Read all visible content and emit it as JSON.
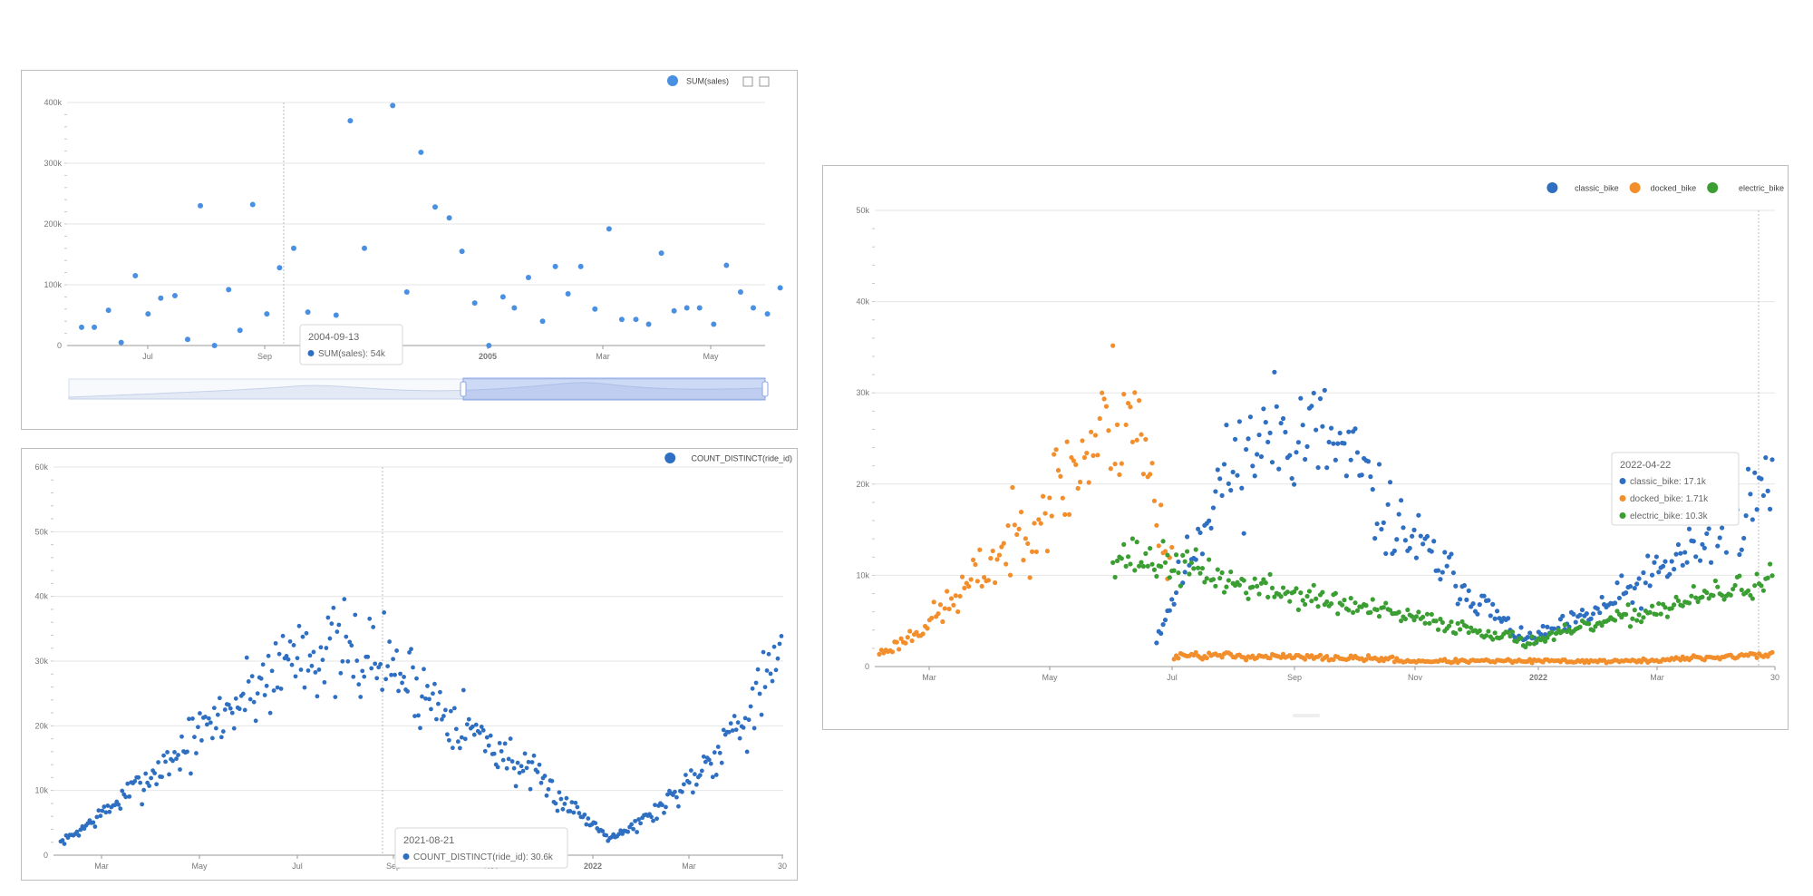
{
  "charts": {
    "c1": {
      "legend": [
        {
          "name": "SUM(sales)",
          "color": "#4a90e2"
        }
      ],
      "toolbox_icons": [
        "zoom-icon",
        "restore-icon"
      ],
      "tooltip": {
        "title": "2004-09-13",
        "rows": [
          {
            "label": "SUM(sales): 54k",
            "color": "#2f6fc2"
          }
        ]
      }
    },
    "c2": {
      "legend": [
        {
          "name": "COUNT_DISTINCT(ride_id)",
          "color": "#2f6fc2"
        }
      ],
      "tooltip": {
        "title": "2021-08-21",
        "rows": [
          {
            "label": "COUNT_DISTINCT(ride_id): 30.6k",
            "color": "#2f6fc2"
          }
        ]
      }
    },
    "c3": {
      "legend": [
        {
          "name": "classic_bike",
          "color": "#2f6fc2"
        },
        {
          "name": "docked_bike",
          "color": "#f28e2b"
        },
        {
          "name": "electric_bike",
          "color": "#3a9e32"
        }
      ],
      "tooltip": {
        "title": "2022-04-22",
        "rows": [
          {
            "label": "classic_bike: 17.1k",
            "color": "#2f6fc2"
          },
          {
            "label": "docked_bike: 1.71k",
            "color": "#f28e2b"
          },
          {
            "label": "electric_bike: 10.3k",
            "color": "#3a9e32"
          }
        ]
      }
    }
  },
  "chart_data": [
    {
      "type": "scatter",
      "series": [
        {
          "name": "SUM(sales)",
          "color": "#4a90e2",
          "points": [
            [
              0.0,
              30
            ],
            [
              0.9,
              30
            ],
            [
              1.9,
              58
            ],
            [
              2.8,
              5
            ],
            [
              3.8,
              115
            ],
            [
              4.7,
              52
            ],
            [
              5.6,
              78
            ],
            [
              6.6,
              82
            ],
            [
              7.5,
              10
            ],
            [
              8.4,
              230
            ],
            [
              9.4,
              0
            ],
            [
              10.4,
              92
            ],
            [
              11.2,
              25
            ],
            [
              12.1,
              232
            ],
            [
              13.1,
              52
            ],
            [
              14.0,
              128
            ],
            [
              15.0,
              160
            ],
            [
              16.0,
              55
            ],
            [
              17.0,
              0
            ],
            [
              18.0,
              50
            ],
            [
              19.0,
              370
            ],
            [
              20.0,
              160
            ],
            [
              21.0,
              30
            ],
            [
              22.0,
              395
            ],
            [
              23.0,
              88
            ],
            [
              24.0,
              318
            ],
            [
              25.0,
              228
            ],
            [
              26.0,
              210
            ],
            [
              26.9,
              155
            ],
            [
              27.8,
              70
            ],
            [
              28.8,
              0
            ],
            [
              29.8,
              80
            ],
            [
              30.6,
              62
            ],
            [
              31.6,
              112
            ],
            [
              32.6,
              40
            ],
            [
              33.5,
              130
            ],
            [
              34.4,
              85
            ],
            [
              35.3,
              130
            ],
            [
              36.3,
              60
            ],
            [
              37.3,
              192
            ],
            [
              38.2,
              43
            ],
            [
              39.2,
              43
            ],
            [
              40.1,
              35
            ],
            [
              41.0,
              152
            ],
            [
              41.9,
              57
            ],
            [
              42.8,
              62
            ],
            [
              43.7,
              62
            ],
            [
              44.7,
              35
            ],
            [
              45.6,
              132
            ],
            [
              46.6,
              88
            ],
            [
              47.5,
              62
            ],
            [
              48.5,
              52
            ],
            [
              49.4,
              95
            ]
          ]
        }
      ],
      "x_ticks": [
        "Jul",
        "Sep",
        "2005",
        "Mar",
        "May"
      ],
      "y_ticks": [
        "0",
        "100k",
        "200k",
        "300k",
        "400k"
      ],
      "ylim": [
        0,
        400000
      ],
      "grid": true,
      "legend_position": "top-right"
    },
    {
      "type": "scatter",
      "series": [
        {
          "name": "COUNT_DISTINCT(ride_id)",
          "color": "#2f6fc2",
          "points": []
        }
      ],
      "x_ticks": [
        "Mar",
        "May",
        "Jul",
        "Sep",
        "Nov",
        "2022",
        "Mar",
        "30"
      ],
      "y_ticks": [
        "0",
        "10k",
        "20k",
        "30k",
        "40k",
        "50k",
        "60k"
      ],
      "ylim": [
        0,
        60000
      ],
      "grid": true,
      "legend_position": "top-right"
    },
    {
      "type": "scatter",
      "series": [
        {
          "name": "classic_bike",
          "color": "#2f6fc2",
          "points": []
        },
        {
          "name": "docked_bike",
          "color": "#f28e2b",
          "points": []
        },
        {
          "name": "electric_bike",
          "color": "#3a9e32",
          "points": []
        }
      ],
      "x_ticks": [
        "Mar",
        "May",
        "Jul",
        "Sep",
        "Nov",
        "2022",
        "Mar",
        "30"
      ],
      "y_ticks": [
        "0",
        "10k",
        "20k",
        "30k",
        "40k",
        "50k"
      ],
      "ylim": [
        0,
        50000
      ],
      "grid": true,
      "legend_position": "top-right"
    }
  ]
}
